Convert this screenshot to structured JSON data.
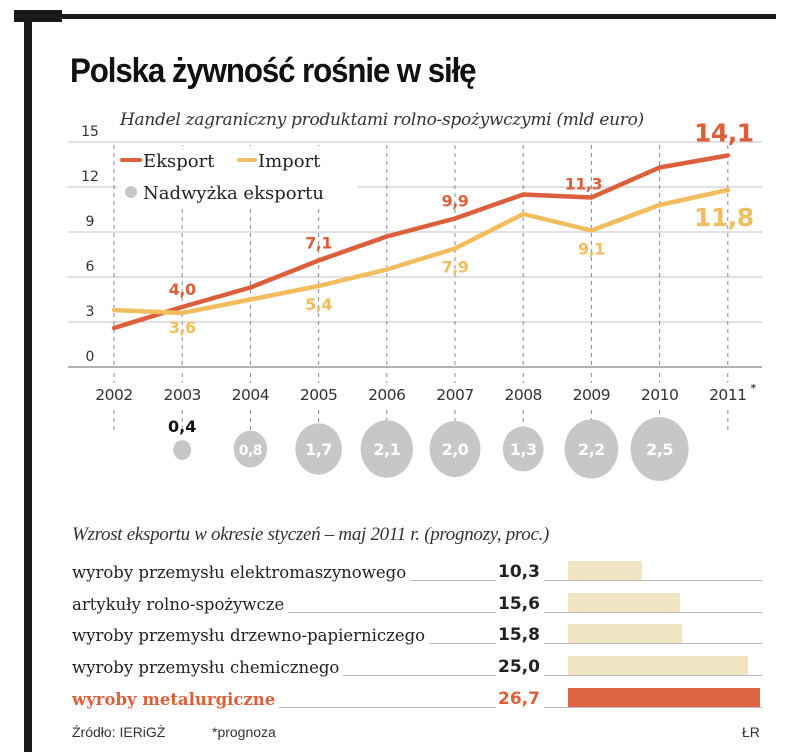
{
  "title": "Polska żywność rośnie w siłę",
  "subtitle": "Handel zagraniczny produktami rolno-spożywczymi  (mld euro)",
  "colors": {
    "export": "#dc5f3c",
    "import": "#f2bd5e",
    "surplus": "#c7c7c7",
    "bar": "#f1e5c4",
    "bar_highlight": "#dc6443"
  },
  "chart_data": [
    {
      "type": "line",
      "title": "Handel zagraniczny produktami rolno-spożywczymi (mld euro)",
      "xlabel": "",
      "ylabel": "",
      "x": [
        "2002",
        "2003",
        "2004",
        "2005",
        "2006",
        "2007",
        "2008",
        "2009",
        "2010",
        "2011*"
      ],
      "ylim": [
        0,
        15
      ],
      "yticks": [
        0,
        3,
        6,
        9,
        12,
        15
      ],
      "grid": true,
      "legend": {
        "placement": "top-left",
        "entries": [
          "Eksport",
          "Import",
          "Nadwyżka eksportu"
        ]
      },
      "series": [
        {
          "name": "Eksport",
          "values": [
            2.6,
            4.0,
            5.3,
            7.1,
            8.7,
            9.9,
            11.5,
            11.3,
            13.3,
            14.1
          ],
          "labels": {
            "2003": "4,0",
            "2005": "7,1",
            "2007": "9,9",
            "2009": "11,3",
            "2011*": "14,1"
          }
        },
        {
          "name": "Import",
          "values": [
            3.8,
            3.6,
            4.5,
            5.4,
            6.5,
            7.9,
            10.2,
            9.1,
            10.8,
            11.8
          ],
          "labels": {
            "2003": "3,6",
            "2005": "5,4",
            "2007": "7,9",
            "2009": "9,1",
            "2011*": "11,8"
          }
        }
      ],
      "surplus": {
        "name": "Nadwyżka eksportu",
        "x": [
          "2003",
          "2004",
          "2005",
          "2006",
          "2007",
          "2008",
          "2009",
          "2010"
        ],
        "values": [
          0.4,
          0.8,
          1.7,
          2.1,
          2.0,
          1.3,
          2.2,
          2.5
        ],
        "labels": [
          "0,4",
          "0,8",
          "1,7",
          "2,1",
          "2,0",
          "1,3",
          "2,2",
          "2,5"
        ]
      },
      "footnote_marker": "*"
    },
    {
      "type": "bar",
      "title": "Wzrost eksportu w okresie styczeń – maj 2011 r. (prognozy, proc.)",
      "categories": [
        "wyroby przemysłu elektromaszynowego",
        "artykuły rolno-spożywcze",
        "wyroby przemysłu drzewno-papierniczego",
        "wyroby przemysłu chemicznego",
        "wyroby metalurgiczne"
      ],
      "values": [
        10.3,
        15.6,
        15.8,
        25.0,
        26.7
      ],
      "value_labels": [
        "10,3",
        "15,6",
        "15,8",
        "25,0",
        "26,7"
      ],
      "highlight_index": 4,
      "xlim": [
        0,
        26.7
      ],
      "orientation": "horizontal"
    }
  ],
  "bars_title": "Wzrost eksportu w okresie styczeń – maj 2011 r. (prognozy, proc.)",
  "footer": {
    "source": "Źródło: IERiGŻ",
    "note": "*prognoza",
    "credit": "ŁR"
  }
}
